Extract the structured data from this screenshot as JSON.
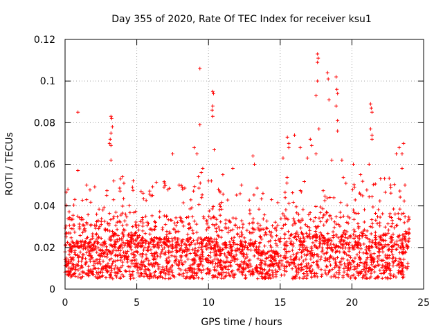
{
  "chart_data": {
    "type": "scatter",
    "title": "Day 355 of 2020, Rate Of TEC Index for receiver ksu1",
    "xlabel": "GPS time / hours",
    "ylabel": "ROTI / TECUs",
    "xlim": [
      0,
      25
    ],
    "ylim": [
      0,
      0.12
    ],
    "xticks": [
      0,
      5,
      10,
      15,
      20,
      25
    ],
    "xtick_labels": [
      "0",
      "5",
      "10",
      "15",
      "20",
      "25"
    ],
    "yticks": [
      0,
      0.02,
      0.04,
      0.06,
      0.08,
      0.1,
      0.12
    ],
    "ytick_labels": [
      "0",
      "0.02",
      "0.04",
      "0.06",
      "0.08",
      "0.1",
      "0.12"
    ],
    "grid": true,
    "marker": "+",
    "color": "#ff0000",
    "series": [
      {
        "name": "ROTI",
        "notes": "Dense scatter of ~5-minute ROTI values over 0-24 h; core band 0.005-0.025, frequent points up to 0.05, isolated spikes listed below",
        "points": [
          [
            0.2,
            0.048
          ],
          [
            0.9,
            0.085
          ],
          [
            0.9,
            0.057
          ],
          [
            1.5,
            0.043
          ],
          [
            2.2,
            0.036
          ],
          [
            2.9,
            0.045
          ],
          [
            3.2,
            0.083
          ],
          [
            3.25,
            0.082
          ],
          [
            3.3,
            0.078
          ],
          [
            3.2,
            0.075
          ],
          [
            3.15,
            0.072
          ],
          [
            3.1,
            0.07
          ],
          [
            3.2,
            0.069
          ],
          [
            3.2,
            0.062
          ],
          [
            3.4,
            0.052
          ],
          [
            4.0,
            0.054
          ],
          [
            4.7,
            0.049
          ],
          [
            5.3,
            0.047
          ],
          [
            6.1,
            0.045
          ],
          [
            6.9,
            0.049
          ],
          [
            7.5,
            0.065
          ],
          [
            8.2,
            0.048
          ],
          [
            9.0,
            0.068
          ],
          [
            9.2,
            0.065
          ],
          [
            9.4,
            0.106
          ],
          [
            9.4,
            0.079
          ],
          [
            9.6,
            0.058
          ],
          [
            9.5,
            0.056
          ],
          [
            9.3,
            0.054
          ],
          [
            10.3,
            0.095
          ],
          [
            10.35,
            0.094
          ],
          [
            10.3,
            0.088
          ],
          [
            10.25,
            0.086
          ],
          [
            10.3,
            0.083
          ],
          [
            10.4,
            0.067
          ],
          [
            10.2,
            0.052
          ],
          [
            10.0,
            0.052
          ],
          [
            11.0,
            0.055
          ],
          [
            11.7,
            0.058
          ],
          [
            12.3,
            0.05
          ],
          [
            13.1,
            0.064
          ],
          [
            13.2,
            0.06
          ],
          [
            13.8,
            0.046
          ],
          [
            14.4,
            0.043
          ],
          [
            15.2,
            0.063
          ],
          [
            15.5,
            0.073
          ],
          [
            15.6,
            0.07
          ],
          [
            15.6,
            0.068
          ],
          [
            16.0,
            0.074
          ],
          [
            16.4,
            0.068
          ],
          [
            16.9,
            0.063
          ],
          [
            17.1,
            0.072
          ],
          [
            17.2,
            0.069
          ],
          [
            17.5,
            0.065
          ],
          [
            17.6,
            0.113
          ],
          [
            17.65,
            0.111
          ],
          [
            17.6,
            0.109
          ],
          [
            17.6,
            0.1
          ],
          [
            17.5,
            0.093
          ],
          [
            17.7,
            0.077
          ],
          [
            18.3,
            0.104
          ],
          [
            18.35,
            0.101
          ],
          [
            18.4,
            0.091
          ],
          [
            18.6,
            0.062
          ],
          [
            18.9,
            0.102
          ],
          [
            18.95,
            0.096
          ],
          [
            19.0,
            0.094
          ],
          [
            18.9,
            0.088
          ],
          [
            19.0,
            0.081
          ],
          [
            19.0,
            0.076
          ],
          [
            19.3,
            0.062
          ],
          [
            20.1,
            0.06
          ],
          [
            20.6,
            0.055
          ],
          [
            21.3,
            0.089
          ],
          [
            21.35,
            0.087
          ],
          [
            21.4,
            0.085
          ],
          [
            21.3,
            0.077
          ],
          [
            21.4,
            0.074
          ],
          [
            21.4,
            0.072
          ],
          [
            21.2,
            0.06
          ],
          [
            22.0,
            0.053
          ],
          [
            22.7,
            0.05
          ],
          [
            23.1,
            0.065
          ],
          [
            23.3,
            0.068
          ],
          [
            23.6,
            0.07
          ],
          [
            23.5,
            0.065
          ],
          [
            23.5,
            0.058
          ],
          [
            23.7,
            0.05
          ]
        ]
      }
    ]
  }
}
